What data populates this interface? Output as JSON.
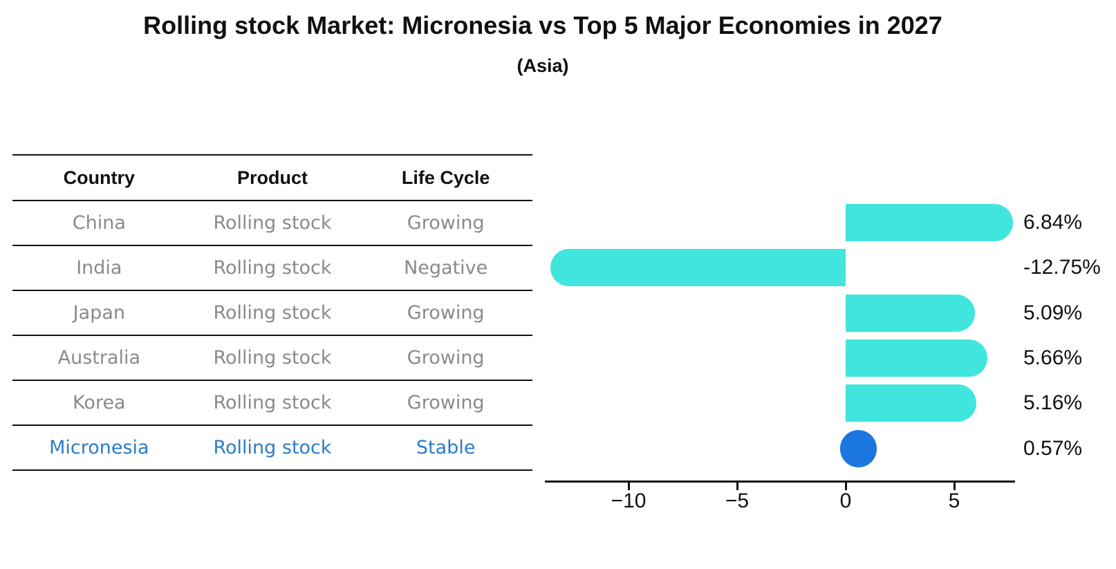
{
  "title": "Rolling stock Market: Micronesia vs Top 5 Major Economies in 2027",
  "subtitle": "(Asia)",
  "table": {
    "headers": [
      "Country",
      "Product",
      "Life Cycle"
    ],
    "rows": [
      {
        "country": "China",
        "product": "Rolling stock",
        "life_cycle": "Growing",
        "highlight": false
      },
      {
        "country": "India",
        "product": "Rolling stock",
        "life_cycle": "Negative",
        "highlight": false
      },
      {
        "country": "Japan",
        "product": "Rolling stock",
        "life_cycle": "Growing",
        "highlight": false
      },
      {
        "country": "Australia",
        "product": "Rolling stock",
        "life_cycle": "Growing",
        "highlight": false
      },
      {
        "country": "Korea",
        "product": "Rolling stock",
        "life_cycle": "Growing",
        "highlight": false
      },
      {
        "country": "Micronesia",
        "product": "Rolling stock",
        "life_cycle": "Stable",
        "highlight": true
      }
    ]
  },
  "chart_data": {
    "type": "bar",
    "orientation": "horizontal",
    "categories": [
      "China",
      "India",
      "Japan",
      "Australia",
      "Korea",
      "Micronesia"
    ],
    "values": [
      6.84,
      -12.75,
      5.09,
      5.66,
      5.16,
      0.57
    ],
    "value_labels": [
      "6.84%",
      "-12.75%",
      "5.09%",
      "5.66%",
      "5.16%",
      "0.57%"
    ],
    "xticks": [
      -10,
      -5,
      0,
      5
    ],
    "xtick_labels": [
      "−10",
      "−5",
      "0",
      "5"
    ],
    "xlim": [
      -13.73,
      7.82
    ],
    "xlabel": "",
    "ylabel": "",
    "grid": false,
    "legend": null,
    "bar_color": "#40e6de",
    "highlight_color": "#1c76e0",
    "highlight_index": 5
  },
  "colors": {
    "bar_cyan": "#40e6de",
    "bar_blue": "#1c76e0",
    "highlight_text_blue": "#2b7bc9",
    "body_text_gray": "#8a8a8a",
    "axis_black": "#111111"
  }
}
